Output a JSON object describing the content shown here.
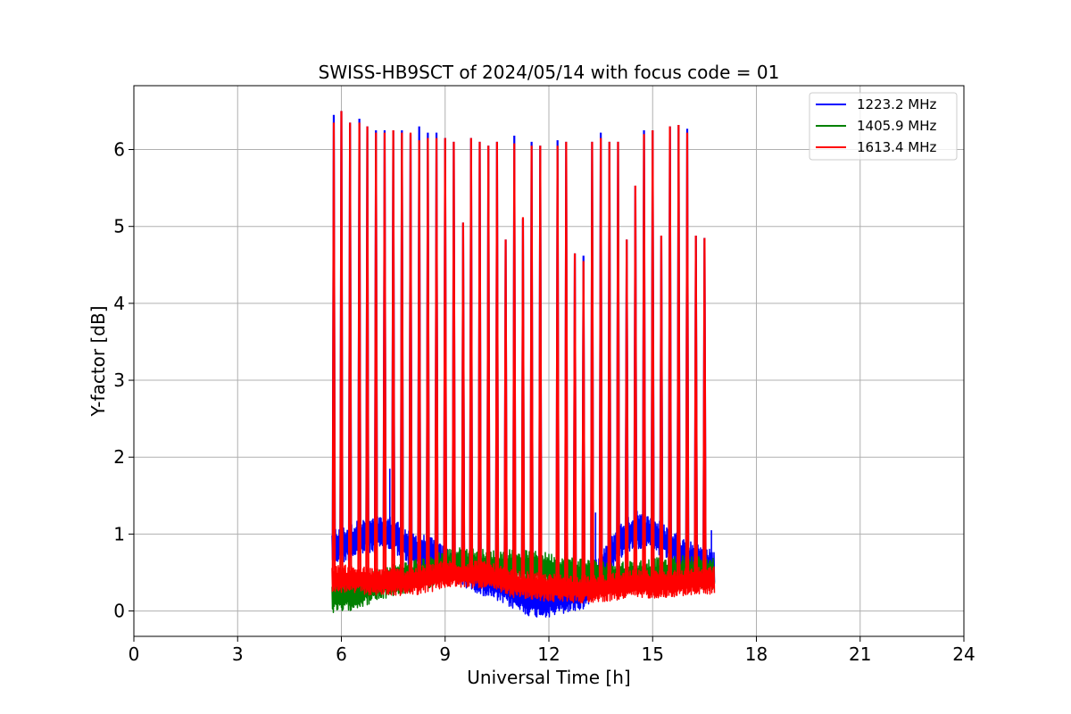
{
  "chart_data": {
    "type": "line",
    "title": "SWISS-HB9SCT of 2024/05/14 with focus code = 01",
    "xlabel": "Universal Time [h]",
    "ylabel": "Y-factor [dB]",
    "xlim": [
      0,
      24
    ],
    "ylim": [
      -0.33,
      6.83
    ],
    "xticks": [
      0,
      3,
      6,
      9,
      12,
      15,
      18,
      21,
      24
    ],
    "yticks": [
      0,
      1,
      2,
      3,
      4,
      5,
      6
    ],
    "grid": true,
    "legend_position": "top-right",
    "data_range_x": [
      5.72,
      16.78
    ],
    "series": [
      {
        "name": "1223.2 MHz",
        "color": "#0000ff",
        "baseline": [
          [
            5.72,
            0.85
          ],
          [
            6.0,
            0.85
          ],
          [
            6.5,
            0.95
          ],
          [
            7.0,
            1.0
          ],
          [
            7.5,
            1.0
          ],
          [
            8.0,
            0.8
          ],
          [
            8.5,
            0.75
          ],
          [
            9.0,
            0.6
          ],
          [
            9.5,
            0.55
          ],
          [
            10.0,
            0.45
          ],
          [
            10.5,
            0.35
          ],
          [
            11.0,
            0.25
          ],
          [
            11.5,
            0.15
          ],
          [
            12.0,
            0.15
          ],
          [
            12.5,
            0.2
          ],
          [
            13.0,
            0.25
          ],
          [
            13.5,
            0.5
          ],
          [
            14.0,
            0.9
          ],
          [
            14.5,
            1.05
          ],
          [
            15.0,
            1.0
          ],
          [
            15.5,
            0.85
          ],
          [
            16.0,
            0.7
          ],
          [
            16.5,
            0.6
          ],
          [
            16.78,
            0.55
          ]
        ],
        "noise": 0.18,
        "peaks": [
          [
            5.78,
            6.45
          ],
          [
            6.0,
            6.5
          ],
          [
            6.25,
            6.35
          ],
          [
            6.52,
            6.4
          ],
          [
            6.75,
            6.3
          ],
          [
            7.0,
            6.25
          ],
          [
            7.25,
            6.25
          ],
          [
            7.5,
            6.25
          ],
          [
            7.75,
            6.25
          ],
          [
            8.0,
            6.2
          ],
          [
            8.25,
            6.3
          ],
          [
            8.5,
            6.22
          ],
          [
            8.75,
            6.22
          ],
          [
            9.0,
            6.15
          ],
          [
            9.25,
            6.1
          ],
          [
            9.52,
            5.05
          ],
          [
            9.75,
            6.15
          ],
          [
            10.0,
            6.1
          ],
          [
            10.25,
            6.05
          ],
          [
            10.5,
            6.1
          ],
          [
            10.75,
            4.83
          ],
          [
            11.0,
            6.18
          ],
          [
            11.25,
            5.1
          ],
          [
            11.5,
            6.1
          ],
          [
            11.75,
            6.05
          ],
          [
            12.25,
            6.12
          ],
          [
            12.5,
            6.1
          ],
          [
            12.75,
            4.65
          ],
          [
            13.0,
            4.62
          ],
          [
            13.25,
            6.1
          ],
          [
            13.5,
            6.22
          ],
          [
            13.75,
            6.1
          ],
          [
            14.0,
            6.1
          ],
          [
            14.25,
            4.83
          ],
          [
            14.5,
            5.53
          ],
          [
            14.75,
            6.25
          ],
          [
            15.0,
            6.25
          ],
          [
            15.25,
            4.88
          ],
          [
            15.5,
            6.3
          ],
          [
            15.75,
            6.32
          ],
          [
            16.0,
            6.27
          ],
          [
            16.25,
            4.88
          ],
          [
            16.5,
            4.85
          ]
        ],
        "spikes": [
          [
            7.4,
            1.85
          ],
          [
            13.35,
            1.28
          ],
          [
            14.55,
            1.3
          ],
          [
            16.7,
            1.05
          ]
        ]
      },
      {
        "name": "1405.9 MHz",
        "color": "#008000",
        "baseline": [
          [
            5.72,
            0.18
          ],
          [
            6.0,
            0.18
          ],
          [
            6.5,
            0.25
          ],
          [
            7.0,
            0.32
          ],
          [
            7.5,
            0.4
          ],
          [
            8.0,
            0.45
          ],
          [
            8.5,
            0.5
          ],
          [
            9.0,
            0.6
          ],
          [
            9.5,
            0.62
          ],
          [
            10.0,
            0.6
          ],
          [
            10.5,
            0.58
          ],
          [
            11.0,
            0.6
          ],
          [
            11.5,
            0.58
          ],
          [
            12.0,
            0.55
          ],
          [
            12.5,
            0.5
          ],
          [
            13.0,
            0.48
          ],
          [
            13.5,
            0.45
          ],
          [
            14.0,
            0.45
          ],
          [
            14.5,
            0.45
          ],
          [
            15.0,
            0.48
          ],
          [
            15.5,
            0.5
          ],
          [
            16.0,
            0.52
          ],
          [
            16.5,
            0.5
          ],
          [
            16.78,
            0.48
          ]
        ],
        "noise": 0.16,
        "peaks": [],
        "spikes": []
      },
      {
        "name": "1613.4 MHz",
        "color": "#ff0000",
        "baseline": [
          [
            5.72,
            0.4
          ],
          [
            6.0,
            0.42
          ],
          [
            6.5,
            0.4
          ],
          [
            7.0,
            0.38
          ],
          [
            7.5,
            0.38
          ],
          [
            8.0,
            0.38
          ],
          [
            8.5,
            0.42
          ],
          [
            9.0,
            0.48
          ],
          [
            9.5,
            0.48
          ],
          [
            10.0,
            0.48
          ],
          [
            10.5,
            0.42
          ],
          [
            11.0,
            0.35
          ],
          [
            11.5,
            0.32
          ],
          [
            12.0,
            0.3
          ],
          [
            12.5,
            0.3
          ],
          [
            13.0,
            0.28
          ],
          [
            13.5,
            0.3
          ],
          [
            14.0,
            0.32
          ],
          [
            14.5,
            0.35
          ],
          [
            15.0,
            0.35
          ],
          [
            15.5,
            0.36
          ],
          [
            16.0,
            0.38
          ],
          [
            16.5,
            0.4
          ],
          [
            16.78,
            0.4
          ]
        ],
        "noise": 0.14,
        "peaks": [
          [
            5.78,
            6.35
          ],
          [
            6.0,
            6.5
          ],
          [
            6.25,
            6.35
          ],
          [
            6.52,
            6.35
          ],
          [
            6.75,
            6.3
          ],
          [
            7.0,
            6.22
          ],
          [
            7.25,
            6.22
          ],
          [
            7.5,
            6.25
          ],
          [
            7.75,
            6.22
          ],
          [
            8.0,
            6.22
          ],
          [
            8.25,
            6.12
          ],
          [
            8.5,
            6.15
          ],
          [
            8.75,
            6.15
          ],
          [
            9.0,
            6.15
          ],
          [
            9.25,
            6.1
          ],
          [
            9.52,
            5.05
          ],
          [
            9.75,
            6.15
          ],
          [
            10.0,
            6.1
          ],
          [
            10.25,
            6.05
          ],
          [
            10.5,
            6.1
          ],
          [
            10.75,
            4.83
          ],
          [
            11.0,
            6.08
          ],
          [
            11.25,
            5.12
          ],
          [
            11.5,
            6.05
          ],
          [
            11.75,
            6.05
          ],
          [
            12.25,
            6.05
          ],
          [
            12.5,
            6.1
          ],
          [
            12.75,
            4.65
          ],
          [
            13.0,
            4.55
          ],
          [
            13.25,
            6.1
          ],
          [
            13.5,
            6.15
          ],
          [
            13.75,
            6.1
          ],
          [
            14.0,
            6.1
          ],
          [
            14.25,
            4.83
          ],
          [
            14.5,
            5.53
          ],
          [
            14.75,
            6.2
          ],
          [
            15.0,
            6.25
          ],
          [
            15.25,
            4.88
          ],
          [
            15.5,
            6.3
          ],
          [
            15.75,
            6.32
          ],
          [
            16.0,
            6.22
          ],
          [
            16.25,
            4.88
          ],
          [
            16.5,
            4.85
          ]
        ],
        "spikes": [
          [
            5.75,
            1.82
          ]
        ]
      }
    ]
  }
}
